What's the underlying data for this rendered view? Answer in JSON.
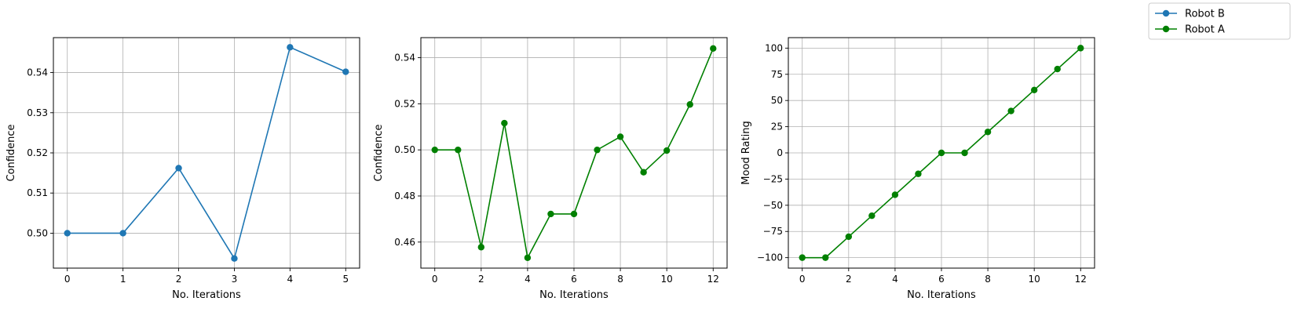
{
  "legend": {
    "entries": [
      {
        "name": "Robot B",
        "color": "#1f77b4"
      },
      {
        "name": "Robot A",
        "color": "#008000"
      }
    ],
    "placement": "top-right"
  },
  "chart_data": [
    {
      "type": "line",
      "xlabel": "No. Iterations",
      "ylabel": "Confidence",
      "grid": true,
      "xlim": [
        -0.25,
        5.25
      ],
      "ylim": [
        0.4913,
        0.5487
      ],
      "xticks": [
        0,
        1,
        2,
        3,
        4,
        5
      ],
      "xtick_labels": [
        "0",
        "1",
        "2",
        "3",
        "4",
        "5"
      ],
      "yticks": [
        0.5,
        0.51,
        0.52,
        0.53,
        0.54
      ],
      "ytick_labels": [
        "0.50",
        "0.51",
        "0.52",
        "0.53",
        "0.54"
      ],
      "series": [
        {
          "name": "Robot B",
          "color": "#1f77b4",
          "x": [
            0,
            1,
            2,
            3,
            4,
            5
          ],
          "y": [
            0.5,
            0.5,
            0.5162,
            0.4937,
            0.5463,
            0.5402
          ]
        }
      ]
    },
    {
      "type": "line",
      "xlabel": "No. Iterations",
      "ylabel": "Confidence",
      "grid": true,
      "xlim": [
        -0.6,
        12.6
      ],
      "ylim": [
        0.4487,
        0.5487
      ],
      "xticks": [
        0,
        2,
        4,
        6,
        8,
        10,
        12
      ],
      "xtick_labels": [
        "0",
        "2",
        "4",
        "6",
        "8",
        "10",
        "12"
      ],
      "yticks": [
        0.46,
        0.48,
        0.5,
        0.52,
        0.54
      ],
      "ytick_labels": [
        "0.46",
        "0.48",
        "0.50",
        "0.52",
        "0.54"
      ],
      "series": [
        {
          "name": "Robot A",
          "color": "#008000",
          "x": [
            0,
            1,
            2,
            3,
            4,
            5,
            6,
            7,
            8,
            9,
            10,
            11,
            12
          ],
          "y": [
            0.5,
            0.5,
            0.4578,
            0.5116,
            0.4532,
            0.4722,
            0.4722,
            0.5,
            0.5057,
            0.4903,
            0.4997,
            0.5197,
            0.544
          ]
        }
      ]
    },
    {
      "type": "line",
      "xlabel": "No. Iterations",
      "ylabel": "Mood Rating",
      "grid": true,
      "xlim": [
        -0.6,
        12.6
      ],
      "ylim": [
        -110,
        110
      ],
      "xticks": [
        0,
        2,
        4,
        6,
        8,
        10,
        12
      ],
      "xtick_labels": [
        "0",
        "2",
        "4",
        "6",
        "8",
        "10",
        "12"
      ],
      "yticks": [
        -100,
        -75,
        -50,
        -25,
        0,
        25,
        50,
        75,
        100
      ],
      "ytick_labels": [
        "−100",
        "−75",
        "−50",
        "−25",
        "0",
        "25",
        "50",
        "75",
        "100"
      ],
      "series": [
        {
          "name": "Robot A",
          "color": "#008000",
          "x": [
            0,
            1,
            2,
            3,
            4,
            5,
            6,
            7,
            8,
            9,
            10,
            11,
            12
          ],
          "y": [
            -100,
            -100,
            -80,
            -60,
            -40,
            -20,
            0,
            0,
            20,
            40,
            60,
            80,
            100
          ]
        }
      ]
    }
  ]
}
